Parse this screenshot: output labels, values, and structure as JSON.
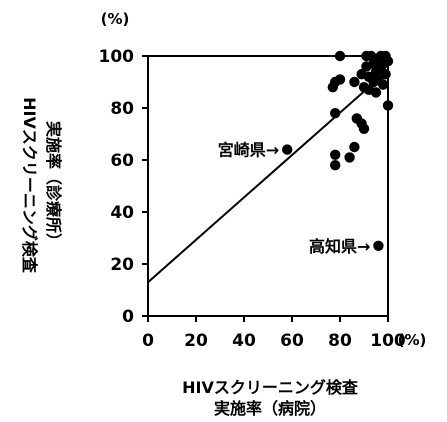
{
  "chart_data": {
    "type": "scatter",
    "xlabel": [
      "HIVスクリーニング検査",
      "実施率（病院）"
    ],
    "ylabel": [
      "HIVスクリーニング検査",
      "実施率（診療所）"
    ],
    "x_unit": "(%)",
    "y_unit": "(%)",
    "xlim": [
      0,
      100
    ],
    "ylim": [
      0,
      100
    ],
    "xticks": [
      "0",
      "20",
      "40",
      "60",
      "80",
      "100"
    ],
    "yticks": [
      "0",
      "20",
      "40",
      "60",
      "80",
      "100"
    ],
    "points": [
      {
        "x": 58,
        "y": 64
      },
      {
        "x": 96,
        "y": 27
      },
      {
        "x": 78,
        "y": 62
      },
      {
        "x": 78,
        "y": 58
      },
      {
        "x": 78,
        "y": 78
      },
      {
        "x": 77,
        "y": 88
      },
      {
        "x": 78,
        "y": 90
      },
      {
        "x": 80,
        "y": 91
      },
      {
        "x": 80,
        "y": 100
      },
      {
        "x": 84,
        "y": 61
      },
      {
        "x": 86,
        "y": 65
      },
      {
        "x": 86,
        "y": 90
      },
      {
        "x": 87,
        "y": 76
      },
      {
        "x": 89,
        "y": 74
      },
      {
        "x": 89,
        "y": 93
      },
      {
        "x": 90,
        "y": 72
      },
      {
        "x": 90,
        "y": 88
      },
      {
        "x": 91,
        "y": 96
      },
      {
        "x": 91,
        "y": 100
      },
      {
        "x": 92,
        "y": 92
      },
      {
        "x": 92,
        "y": 87
      },
      {
        "x": 93,
        "y": 100
      },
      {
        "x": 94,
        "y": 90
      },
      {
        "x": 94,
        "y": 97
      },
      {
        "x": 95,
        "y": 86
      },
      {
        "x": 95,
        "y": 94
      },
      {
        "x": 96,
        "y": 99
      },
      {
        "x": 96,
        "y": 91
      },
      {
        "x": 97,
        "y": 100
      },
      {
        "x": 97,
        "y": 95
      },
      {
        "x": 98,
        "y": 89
      },
      {
        "x": 98,
        "y": 97
      },
      {
        "x": 99,
        "y": 100
      },
      {
        "x": 99,
        "y": 93
      },
      {
        "x": 100,
        "y": 81
      },
      {
        "x": 100,
        "y": 98
      }
    ],
    "trendline": {
      "intercept": 13.0,
      "slope": 0.815
    },
    "annotations": [
      {
        "text": "宮崎県→",
        "x": 58,
        "y": 64
      },
      {
        "text": "高知県→",
        "x": 96,
        "y": 27
      }
    ],
    "colors": {
      "marker": "#000000",
      "line": "#000000"
    }
  }
}
